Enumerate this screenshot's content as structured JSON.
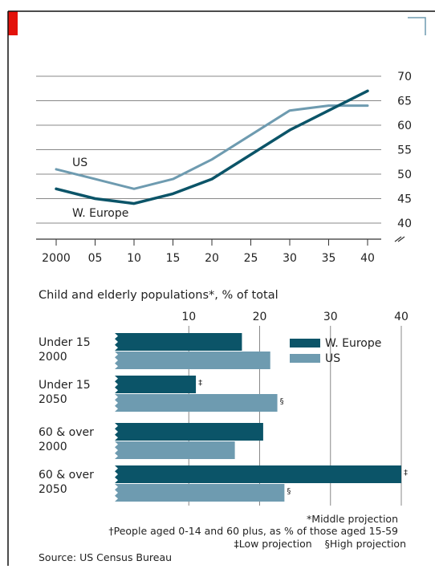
{
  "colors": {
    "west_europe": "#0b5468",
    "us": "#6e9bb0",
    "gridline": "#888888",
    "text": "#222222",
    "brand": "#e3120b",
    "panel_border": "#111111"
  },
  "chart_data": [
    {
      "type": "line",
      "x": [
        2000,
        2005,
        2010,
        2015,
        2020,
        2025,
        2030,
        2035,
        2040
      ],
      "xtick_labels": [
        "2000",
        "05",
        "10",
        "15",
        "20",
        "25",
        "30",
        "35",
        "40"
      ],
      "ylim": [
        40,
        70
      ],
      "yticks": [
        40,
        45,
        50,
        55,
        60,
        65,
        70
      ],
      "y_axis_break": true,
      "grid": true,
      "series": [
        {
          "name": "US",
          "color": "#6e9bb0",
          "values": [
            51,
            49,
            47,
            49,
            53,
            58,
            63,
            64,
            64
          ]
        },
        {
          "name": "W. Europe",
          "color": "#0b5468",
          "values": [
            47,
            45,
            44,
            46,
            49,
            54,
            59,
            63,
            67
          ]
        }
      ]
    },
    {
      "type": "bar",
      "orientation": "horizontal",
      "title": "Child and elderly populations*, % of total",
      "xlim": [
        0,
        40
      ],
      "xticks": [
        10,
        20,
        30,
        40
      ],
      "grid": true,
      "legend_position": "top-right",
      "categories": [
        "Under 15 2000",
        "Under 15 2050",
        "60 & over 2000",
        "60 & over 2050"
      ],
      "category_labels": [
        [
          "Under 15",
          "2000"
        ],
        [
          "Under 15",
          "2050"
        ],
        [
          "60 & over",
          "2000"
        ],
        [
          "60 & over",
          "2050"
        ]
      ],
      "series": [
        {
          "name": "W. Europe",
          "color": "#0b5468",
          "values": [
            17.5,
            11,
            20.5,
            40
          ],
          "marks": [
            "",
            "‡",
            "",
            "‡"
          ]
        },
        {
          "name": "US",
          "color": "#6e9bb0",
          "values": [
            21.5,
            22.5,
            16.5,
            23.5
          ],
          "marks": [
            "",
            "§",
            "",
            "§"
          ]
        }
      ]
    }
  ],
  "footnotes": [
    "*Middle projection",
    "†People  aged 0-14 and 60 plus, as % of those aged 15-59",
    "‡Low projection    §High projection"
  ],
  "source": "Source: US Census Bureau"
}
